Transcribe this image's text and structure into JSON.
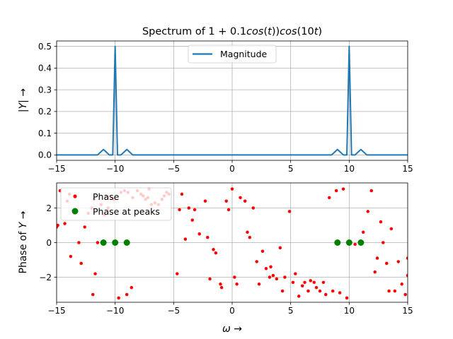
{
  "chart_data": [
    {
      "type": "line",
      "title": "Spectrum of 1+0.1cos(t))cos(10t)",
      "title_parts": [
        "Spectrum of ",
        "1 + 0.1",
        "cos",
        "(",
        "t",
        "))",
        "cos",
        "(10",
        "t",
        ")"
      ],
      "xlabel": "",
      "ylabel": "|Y| →",
      "ylabel_parts": [
        "|",
        "Y",
        "| →"
      ],
      "xlim": [
        -15,
        15
      ],
      "ylim": [
        -0.025,
        0.525
      ],
      "xticks": [
        -15,
        -10,
        -5,
        0,
        5,
        10,
        15
      ],
      "xtick_labels": [
        "−15",
        "−10",
        "−5",
        "0",
        "5",
        "10",
        "15"
      ],
      "yticks": [
        0.0,
        0.1,
        0.2,
        0.3,
        0.4,
        0.5
      ],
      "ytick_labels": [
        "0.0",
        "0.1",
        "0.2",
        "0.3",
        "0.4",
        "0.5"
      ],
      "grid": true,
      "legend": "top-center",
      "series": [
        {
          "name": "Magnitude",
          "color": "#1f77b4",
          "x": [
            -15,
            -11.5,
            -11,
            -10.5,
            -10.2,
            -10,
            -9.8,
            -9.5,
            -9,
            -8.5,
            8.5,
            9,
            9.5,
            9.8,
            10,
            10.2,
            10.5,
            11,
            11.5,
            15
          ],
          "y": [
            0,
            0,
            0.025,
            0,
            0,
            0.5,
            0,
            0,
            0.025,
            0,
            0,
            0.025,
            0,
            0,
            0.5,
            0,
            0,
            0.025,
            0,
            0
          ]
        }
      ]
    },
    {
      "type": "scatter",
      "title": "",
      "xlabel": "ω →",
      "xlabel_parts": [
        "ω",
        " →"
      ],
      "ylabel": "Phase of Y →",
      "ylabel_parts": [
        "Phase of ",
        "Y",
        " →"
      ],
      "xlim": [
        -15,
        15
      ],
      "ylim": [
        -3.45,
        3.45
      ],
      "xticks": [
        -15,
        -10,
        -5,
        0,
        5,
        10,
        15
      ],
      "xtick_labels": [
        "−15",
        "−10",
        "−5",
        "0",
        "5",
        "10",
        "15"
      ],
      "yticks": [
        -2,
        0,
        2
      ],
      "ytick_labels": [
        "−2",
        "0",
        "2"
      ],
      "grid": true,
      "legend": "top-left",
      "series": [
        {
          "name": "Phase",
          "color": "#ff0000",
          "marker_size": 4.5,
          "points": [
            [
              -15,
              0.9
            ],
            [
              -14.7,
              3.0
            ],
            [
              -14.3,
              1.1
            ],
            [
              -13.9,
              2.8
            ],
            [
              -13.8,
              -0.8
            ],
            [
              -13.5,
              1.7
            ],
            [
              -13.1,
              0.0
            ],
            [
              -12.9,
              -1.2
            ],
            [
              -12.6,
              0.9
            ],
            [
              -12.3,
              1.7
            ],
            [
              -11.9,
              -3.0
            ],
            [
              -11.7,
              -1.8
            ],
            [
              -11.5,
              0.0
            ],
            [
              -11.2,
              2.2
            ],
            [
              -10.9,
              1.6
            ],
            [
              -10.3,
              2.6
            ],
            [
              -9.7,
              -3.2
            ],
            [
              -9.0,
              -3.0
            ],
            [
              -8.6,
              -2.6
            ],
            [
              -7.1,
              3.1
            ],
            [
              -4.7,
              -1.8
            ],
            [
              -4.5,
              1.9
            ],
            [
              -4.3,
              2.8
            ],
            [
              -4.0,
              0.2
            ],
            [
              -3.7,
              2.0
            ],
            [
              -3.4,
              1.3
            ],
            [
              -3.2,
              1.9
            ],
            [
              -2.8,
              0.5
            ],
            [
              -2.3,
              2.4
            ],
            [
              -2.1,
              0.3
            ],
            [
              -1.9,
              -2.1
            ],
            [
              -1.6,
              -0.4
            ],
            [
              -1.4,
              -0.6
            ],
            [
              -1.0,
              -2.4
            ],
            [
              -0.9,
              -2.6
            ],
            [
              -0.5,
              2.4
            ],
            [
              -0.3,
              1.9
            ],
            [
              0.0,
              3.1
            ],
            [
              0.2,
              -2.0
            ],
            [
              0.4,
              -2.4
            ],
            [
              0.7,
              2.6
            ],
            [
              1.1,
              2.4
            ],
            [
              1.3,
              0.6
            ],
            [
              1.5,
              0.3
            ],
            [
              1.8,
              2.0
            ],
            [
              2.1,
              -1.1
            ],
            [
              2.3,
              -2.4
            ],
            [
              2.6,
              -0.5
            ],
            [
              2.9,
              -1.5
            ],
            [
              3.2,
              -2.0
            ],
            [
              3.3,
              -1.4
            ],
            [
              3.5,
              -1.9
            ],
            [
              3.8,
              -2.1
            ],
            [
              4.1,
              -0.3
            ],
            [
              4.3,
              -2.8
            ],
            [
              4.5,
              -2.0
            ],
            [
              4.9,
              1.8
            ],
            [
              5.2,
              -2.3
            ],
            [
              5.4,
              -1.8
            ],
            [
              5.7,
              -3.1
            ],
            [
              6.0,
              -2.5
            ],
            [
              6.2,
              -2.3
            ],
            [
              6.5,
              -2.8
            ],
            [
              6.7,
              -2.2
            ],
            [
              7.0,
              -2.3
            ],
            [
              7.2,
              -2.6
            ],
            [
              7.5,
              -2.8
            ],
            [
              7.8,
              -2.3
            ],
            [
              8.0,
              -3.0
            ],
            [
              8.3,
              2.6
            ],
            [
              8.6,
              -2.8
            ],
            [
              8.9,
              3.0
            ],
            [
              9.2,
              -2.9
            ],
            [
              9.5,
              3.1
            ],
            [
              9.8,
              -3.2
            ],
            [
              10.5,
              -0.1
            ],
            [
              11.2,
              0.6
            ],
            [
              11.6,
              1.8
            ],
            [
              11.9,
              3.0
            ],
            [
              12.2,
              -1.7
            ],
            [
              12.4,
              -0.9
            ],
            [
              12.7,
              1.2
            ],
            [
              12.9,
              0.0
            ],
            [
              13.2,
              -1.2
            ],
            [
              13.4,
              -2.8
            ],
            [
              13.6,
              0.8
            ],
            [
              13.9,
              -2.8
            ],
            [
              14.2,
              -1.1
            ],
            [
              14.5,
              -2.4
            ],
            [
              14.8,
              -3.0
            ],
            [
              15.0,
              -1.9
            ],
            [
              15.0,
              -0.9
            ],
            [
              -14.9,
              1.0
            ],
            [
              -14.1,
              2.4
            ],
            [
              -12.0,
              2.0
            ],
            [
              -11.8,
              2.5
            ],
            [
              -10.8,
              2.7
            ],
            [
              -10.6,
              2.0
            ],
            [
              -10.1,
              2.5
            ],
            [
              -9.5,
              2.9
            ],
            [
              -9.2,
              3.0
            ],
            [
              -8.9,
              2.9
            ],
            [
              -8.5,
              2.6
            ],
            [
              -8.1,
              3.0
            ],
            [
              -7.8,
              2.8
            ],
            [
              -7.6,
              2.7
            ],
            [
              -7.4,
              2.5
            ],
            [
              -7.2,
              2.6
            ],
            [
              -6.9,
              2.2
            ],
            [
              -6.6,
              2.3
            ],
            [
              -6.3,
              2.2
            ],
            [
              -6.0,
              2.5
            ],
            [
              -5.8,
              2.7
            ],
            [
              -5.6,
              2.9
            ],
            [
              -5.4,
              2.8
            ]
          ]
        },
        {
          "name": "Phase at peaks",
          "color": "#008000",
          "marker_size": 9,
          "points": [
            [
              -11,
              0
            ],
            [
              -10,
              0
            ],
            [
              -9,
              0
            ],
            [
              9,
              0
            ],
            [
              10,
              0
            ],
            [
              11,
              0
            ]
          ]
        }
      ]
    }
  ]
}
